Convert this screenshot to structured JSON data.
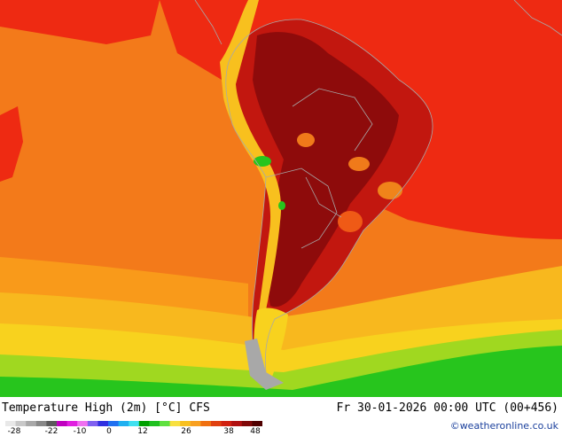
{
  "map": {
    "title": "Temperature High (2m) [°C] CFS",
    "valid_time": "Fr 30-01-2026 00:00 UTC (00+456)",
    "credit": "©weatheronline.co.uk",
    "colors": {
      "ocean_warm": "#f37a1a",
      "ocean_hot": "#ee2a12",
      "land_hot": "#c2170f",
      "land_very_hot": "#8e0b0b",
      "mid_orange": "#f99a1a",
      "yellow": "#f8d21e",
      "green": "#27c51d",
      "border": "#a8a8a8"
    }
  },
  "legend": {
    "ticks": [
      "-28",
      "-22",
      "-10",
      "0",
      "12",
      "26",
      "38",
      "48"
    ],
    "colors": [
      "#e8e8e8",
      "#c8c8c8",
      "#a8a8a8",
      "#888888",
      "#5a5a5a",
      "#c000c0",
      "#e020e0",
      "#f070f0",
      "#8060f0",
      "#3030e0",
      "#2070f0",
      "#20b0f0",
      "#40e0f0",
      "#00a000",
      "#20c020",
      "#60e040",
      "#f8e040",
      "#f8c020",
      "#f8a020",
      "#f07010",
      "#e04010",
      "#d02010",
      "#b01010",
      "#800808",
      "#500000"
    ]
  }
}
